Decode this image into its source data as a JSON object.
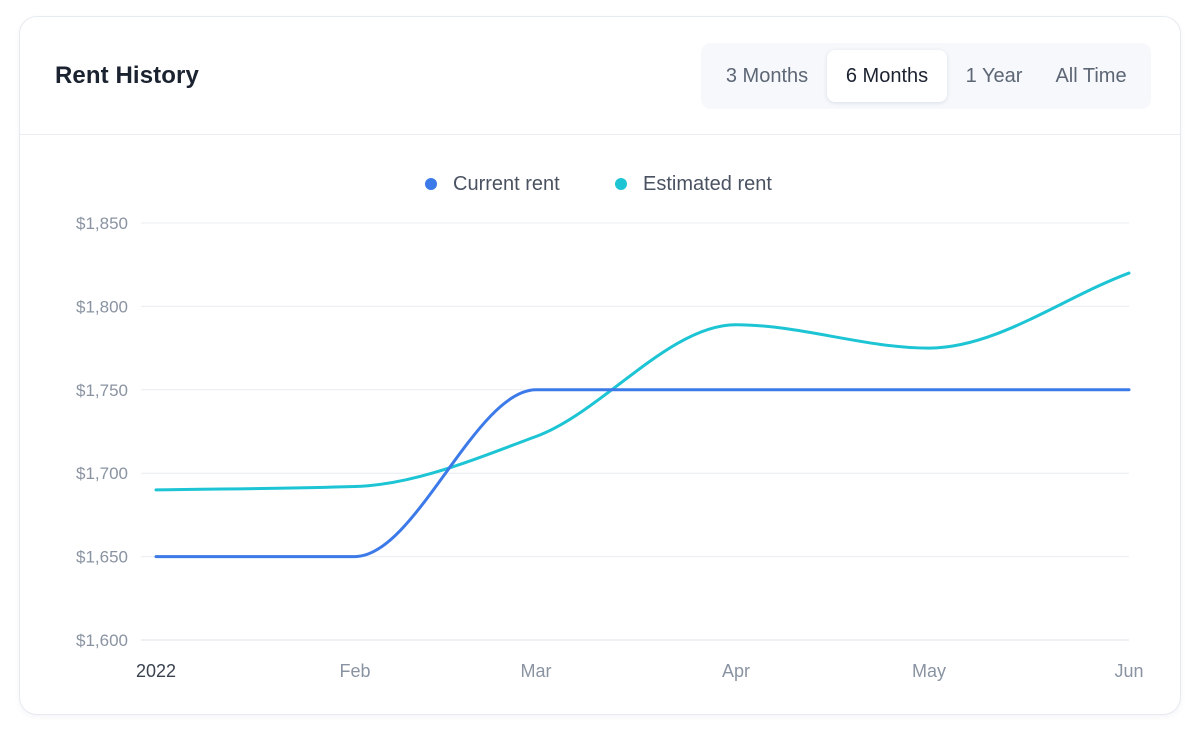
{
  "card": {
    "title": "Rent History"
  },
  "range_selector": {
    "options": [
      "3 Months",
      "6 Months",
      "1 Year",
      "All Time"
    ],
    "selected": "6 Months"
  },
  "colors": {
    "current_rent": "#3b7ae8",
    "estimated_rent": "#1dc4d4",
    "grid": "#e8ecf1"
  },
  "chart_data": {
    "type": "line",
    "x": [
      "2022",
      "Feb",
      "Mar",
      "Apr",
      "May",
      "Jun"
    ],
    "series": [
      {
        "name": "Current rent",
        "values": [
          1650,
          1650,
          1750,
          1750,
          1750,
          1750
        ]
      },
      {
        "name": "Estimated rent",
        "values": [
          1690,
          1692,
          1722,
          1789,
          1775,
          1820
        ]
      }
    ],
    "y_ticks": [
      "$1,600",
      "$1,650",
      "$1,700",
      "$1,750",
      "$1,800",
      "$1,850"
    ],
    "ylim": [
      1600,
      1850
    ],
    "grid": true,
    "legend_position": "top-center"
  }
}
